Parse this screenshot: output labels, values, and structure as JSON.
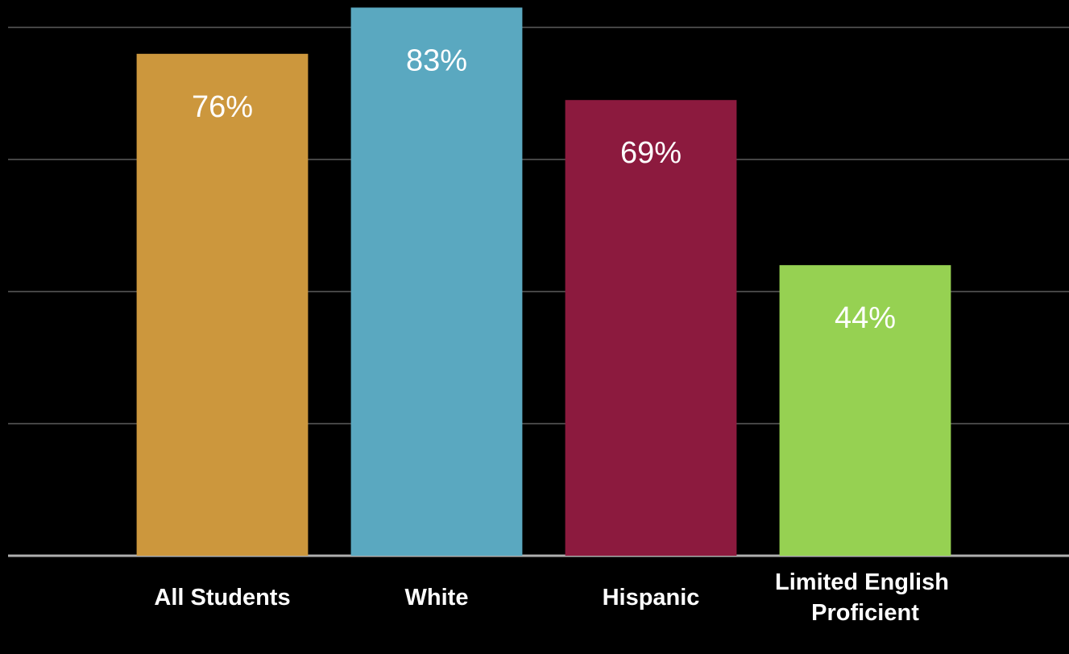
{
  "chart_data": {
    "type": "bar",
    "categories": [
      "All Students",
      "White",
      "Hispanic",
      "Limited English Proficient"
    ],
    "values": [
      76,
      83,
      69,
      44
    ],
    "value_labels": [
      "76%",
      "83%",
      "69%",
      "44%"
    ],
    "colors": [
      "#cc973d",
      "#5aa8c0",
      "#8c1a3e",
      "#96d152"
    ],
    "ylim": [
      0,
      84
    ],
    "yticks": [
      0,
      20,
      40,
      60,
      80
    ],
    "grid": true
  }
}
